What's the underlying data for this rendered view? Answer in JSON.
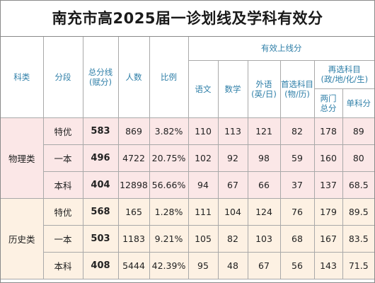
{
  "title": "南充市高2025届一诊划线及学科有效分",
  "headers": {
    "subject_type": "科类",
    "segment": "分段",
    "total_line": "总分线",
    "total_line_sub": "(赋分)",
    "count": "人数",
    "ratio": "比例",
    "valid_group": "有效上线分",
    "chinese": "语文",
    "math": "数学",
    "foreign": "外语",
    "foreign_sub": "(英/日)",
    "first_choice": "首选科目",
    "first_choice_sub": "(物/历)",
    "reselect": "再选科目",
    "reselect_sub": "(政/地/化/生)",
    "two_subjects": "两门",
    "two_subjects_sub": "总分",
    "single_subject": "单科分"
  },
  "groups": [
    {
      "name": "物理类",
      "color": "#fbe7e7",
      "rows": [
        {
          "segment": "特优",
          "total": "583",
          "count": "869",
          "ratio": "3.82%",
          "chinese": "110",
          "math": "113",
          "foreign": "121",
          "first": "82",
          "two": "178",
          "single": "89"
        },
        {
          "segment": "一本",
          "total": "496",
          "count": "4722",
          "ratio": "20.75%",
          "chinese": "102",
          "math": "92",
          "foreign": "98",
          "first": "59",
          "two": "160",
          "single": "80"
        },
        {
          "segment": "本科",
          "total": "404",
          "count": "12898",
          "ratio": "56.66%",
          "chinese": "94",
          "math": "67",
          "foreign": "66",
          "first": "37",
          "two": "137",
          "single": "68.5"
        }
      ]
    },
    {
      "name": "历史类",
      "color": "#fdf1e3",
      "rows": [
        {
          "segment": "特优",
          "total": "568",
          "count": "165",
          "ratio": "1.28%",
          "chinese": "111",
          "math": "104",
          "foreign": "124",
          "first": "76",
          "two": "179",
          "single": "89.5"
        },
        {
          "segment": "一本",
          "total": "503",
          "count": "1183",
          "ratio": "9.21%",
          "chinese": "105",
          "math": "82",
          "foreign": "103",
          "first": "68",
          "two": "167",
          "single": "83.5"
        },
        {
          "segment": "本科",
          "total": "408",
          "count": "5444",
          "ratio": "42.39%",
          "chinese": "95",
          "math": "48",
          "foreign": "67",
          "first": "56",
          "two": "143",
          "single": "71.5"
        }
      ]
    }
  ]
}
